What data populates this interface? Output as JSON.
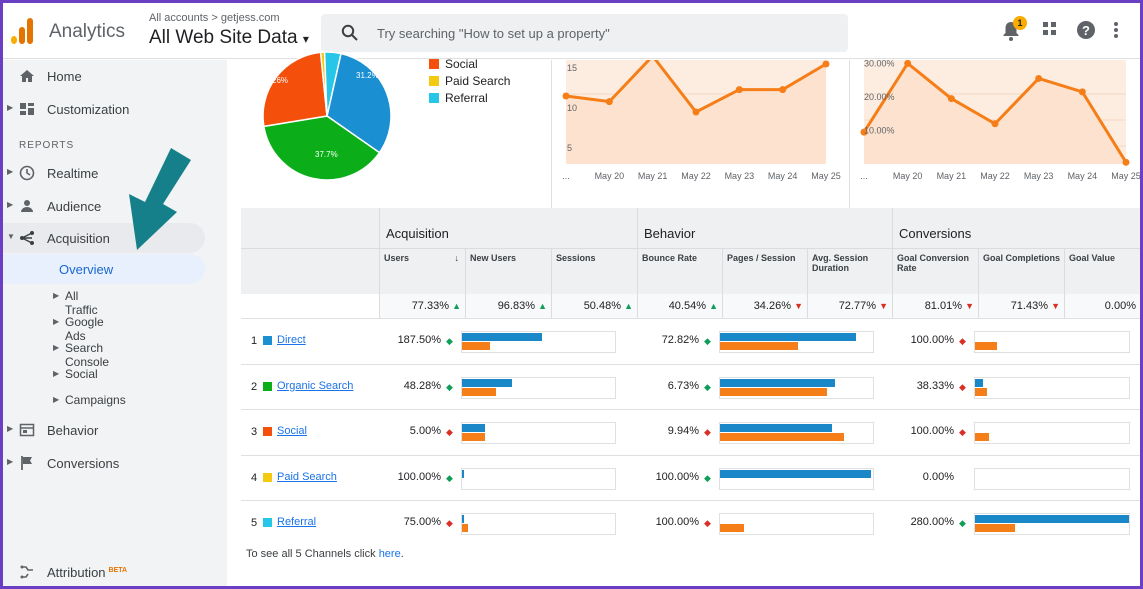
{
  "colors": {
    "direct": "#1a8fd1",
    "organic": "#0bae18",
    "social": "#f5500b",
    "paid": "#f4c911",
    "referral": "#25c6e8",
    "blue_bar": "#1a87c9",
    "orange_bar": "#f57e18"
  },
  "header": {
    "app_name": "Analytics",
    "account_crumb": "All accounts > getjess.com",
    "view_name": "All Web Site Data",
    "search_placeholder": "Try searching \"How to set up a property\"",
    "notification_count": "1"
  },
  "sidebar": {
    "home": "Home",
    "customization": "Customization",
    "reports_label": "REPORTS",
    "realtime": "Realtime",
    "audience": "Audience",
    "acquisition": "Acquisition",
    "overview": "Overview",
    "sub_items": [
      "All Traffic",
      "Google Ads",
      "Search Console",
      "Social",
      "Campaigns"
    ],
    "behavior": "Behavior",
    "conversions": "Conversions",
    "attribution": "Attribution",
    "beta": "BETA"
  },
  "pie": {
    "slices": [
      {
        "name": "Direct",
        "value": 31.2,
        "color": "#1a8fd1"
      },
      {
        "name": "Organic Search",
        "value": 37.7,
        "color": "#0bae18"
      },
      {
        "name": "Social",
        "value": 26.0,
        "color": "#f5500b"
      },
      {
        "name": "Paid Search",
        "value": 1.0,
        "color": "#f4c911"
      },
      {
        "name": "Referral",
        "value": 4.1,
        "color": "#25c6e8"
      }
    ],
    "labels": {
      "direct": "31.2%",
      "organic": "37.7%",
      "social": "26%"
    },
    "legend": [
      "Social",
      "Paid Search",
      "Referral"
    ]
  },
  "chart_data": [
    {
      "type": "area",
      "title": "",
      "x": [
        "...",
        "May 20",
        "May 21",
        "May 22",
        "May 23",
        "May 24",
        "May 25"
      ],
      "y": [
        11.5,
        10.8,
        16.5,
        9.5,
        12.3,
        12.3,
        15.5
      ],
      "ylim": [
        3,
        16
      ],
      "yticks": [
        "5",
        "10",
        "15"
      ]
    },
    {
      "type": "area",
      "title": "",
      "x": [
        "...",
        "May 20",
        "May 21",
        "May 22",
        "May 23",
        "May 24",
        "May 25"
      ],
      "y": [
        9.5,
        30.0,
        19.5,
        12.0,
        25.5,
        21.5,
        0.5
      ],
      "ylim": [
        0,
        31
      ],
      "yticks": [
        "10.00%",
        "20.00%",
        "30.00%"
      ]
    }
  ],
  "table": {
    "groups": [
      "Acquisition",
      "Behavior",
      "Conversions"
    ],
    "columns": [
      "Users",
      "New Users",
      "Sessions",
      "Bounce Rate",
      "Pages / Session",
      "Avg. Session Duration",
      "Goal Conversion Rate",
      "Goal Completions",
      "Goal Value"
    ],
    "sort_icon": "↓",
    "totals": [
      {
        "value": "77.33%",
        "dir": "up"
      },
      {
        "value": "96.83%",
        "dir": "up"
      },
      {
        "value": "50.48%",
        "dir": "up"
      },
      {
        "value": "40.54%",
        "dir": "up"
      },
      {
        "value": "34.26%",
        "dir": "down"
      },
      {
        "value": "72.77%",
        "dir": "down"
      },
      {
        "value": "81.01%",
        "dir": "down"
      },
      {
        "value": "71.43%",
        "dir": "down"
      },
      {
        "value": "0.00%",
        "dir": "none"
      }
    ],
    "rows": [
      {
        "index": "1",
        "channel": "Direct",
        "color": "#1a8fd1",
        "users": "187.50%",
        "users_dir": "up",
        "bounce": "72.82%",
        "bounce_dir": "up",
        "conv": "100.00%",
        "conv_dir": "down",
        "acq_bars": [
          0.52,
          0.18
        ],
        "beh_bars": [
          0.89,
          0.51
        ],
        "conv_bars": [
          0.0,
          0.14
        ]
      },
      {
        "index": "2",
        "channel": "Organic Search",
        "color": "#0bae18",
        "users": "48.28%",
        "users_dir": "up",
        "bounce": "6.73%",
        "bounce_dir": "up",
        "conv": "38.33%",
        "conv_dir": "down",
        "acq_bars": [
          0.33,
          0.22
        ],
        "beh_bars": [
          0.75,
          0.7
        ],
        "conv_bars": [
          0.05,
          0.08
        ]
      },
      {
        "index": "3",
        "channel": "Social",
        "color": "#f5500b",
        "users": "5.00%",
        "users_dir": "down",
        "bounce": "9.94%",
        "bounce_dir": "down",
        "conv": "100.00%",
        "conv_dir": "down",
        "acq_bars": [
          0.15,
          0.15
        ],
        "beh_bars": [
          0.73,
          0.81
        ],
        "conv_bars": [
          0.0,
          0.09
        ]
      },
      {
        "index": "4",
        "channel": "Paid Search",
        "color": "#f4c911",
        "users": "100.00%",
        "users_dir": "up",
        "bounce": "100.00%",
        "bounce_dir": "up",
        "conv": "0.00%",
        "conv_dir": "none",
        "acq_bars": [
          0.01,
          0.0
        ],
        "beh_bars": [
          0.99,
          0.0
        ],
        "conv_bars": [
          0.0,
          0.0
        ]
      },
      {
        "index": "5",
        "channel": "Referral",
        "color": "#25c6e8",
        "users": "75.00%",
        "users_dir": "down",
        "bounce": "100.00%",
        "bounce_dir": "down",
        "conv": "280.00%",
        "conv_dir": "up",
        "acq_bars": [
          0.01,
          0.04
        ],
        "beh_bars": [
          0.0,
          0.16
        ],
        "conv_bars": [
          1.0,
          0.26
        ]
      }
    ],
    "footer_text": "To see all 5 Channels click ",
    "footer_link": "here",
    "footer_end": "."
  }
}
